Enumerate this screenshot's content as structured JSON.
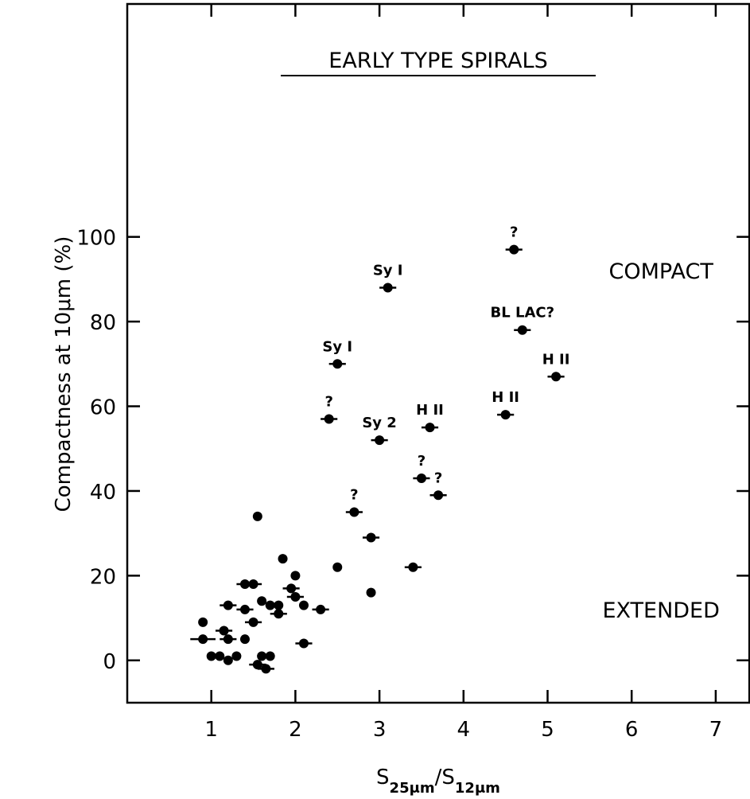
{
  "chart_data": {
    "type": "scatter",
    "title": "EARLY TYPE SPIRALS",
    "x_label_parts": [
      {
        "text": "S"
      },
      {
        "text": "25μm",
        "sub": true
      },
      {
        "text": "/"
      },
      {
        "text": "S"
      },
      {
        "text": "12μm",
        "sub": true
      }
    ],
    "y_label": "Compactness at 10μm (%)",
    "xlim": [
      0,
      7.4
    ],
    "ylim": [
      -10,
      155
    ],
    "xticks": [
      1,
      2,
      3,
      4,
      5,
      6,
      7
    ],
    "yticks": [
      0,
      20,
      40,
      60,
      80,
      100
    ],
    "color": "#000000",
    "annotations": [
      {
        "text": "COMPACT",
        "x": 6.35,
        "y": 92
      },
      {
        "text": "EXTENDED",
        "x": 6.35,
        "y": 12
      }
    ],
    "points": [
      {
        "x": 4.6,
        "y": 97,
        "xerr": 0.1,
        "label": "?"
      },
      {
        "x": 3.1,
        "y": 88,
        "xerr": 0.1,
        "label": "Sy I"
      },
      {
        "x": 4.7,
        "y": 78,
        "xerr": 0.1,
        "label": "BL LAC?"
      },
      {
        "x": 5.1,
        "y": 67,
        "xerr": 0.1,
        "label": "H II"
      },
      {
        "x": 2.5,
        "y": 70,
        "xerr": 0.1,
        "label": "Sy I"
      },
      {
        "x": 2.4,
        "y": 57,
        "xerr": 0.1,
        "label": "?"
      },
      {
        "x": 3.0,
        "y": 52,
        "xerr": 0.1,
        "label": "Sy 2"
      },
      {
        "x": 3.6,
        "y": 55,
        "xerr": 0.1,
        "label": "H II"
      },
      {
        "x": 4.5,
        "y": 58,
        "xerr": 0.1,
        "label": "H II"
      },
      {
        "x": 3.5,
        "y": 43,
        "xerr": 0.1,
        "label": "?"
      },
      {
        "x": 3.7,
        "y": 39,
        "xerr": 0.1,
        "label": "?"
      },
      {
        "x": 2.7,
        "y": 35,
        "xerr": 0.1,
        "label": "?"
      },
      {
        "x": 2.9,
        "y": 29,
        "xerr": 0.1
      },
      {
        "x": 3.4,
        "y": 22,
        "xerr": 0.1
      },
      {
        "x": 2.5,
        "y": 22
      },
      {
        "x": 2.9,
        "y": 16
      },
      {
        "x": 1.55,
        "y": 34
      },
      {
        "x": 1.85,
        "y": 24
      },
      {
        "x": 2.0,
        "y": 20
      },
      {
        "x": 1.95,
        "y": 17,
        "xerr": 0.1
      },
      {
        "x": 2.0,
        "y": 15,
        "xerr": 0.1
      },
      {
        "x": 2.1,
        "y": 13
      },
      {
        "x": 2.3,
        "y": 12,
        "xerr": 0.1
      },
      {
        "x": 2.1,
        "y": 4,
        "xerr": 0.1
      },
      {
        "x": 1.4,
        "y": 18,
        "xerr": 0.1
      },
      {
        "x": 1.5,
        "y": 18,
        "xerr": 0.1
      },
      {
        "x": 1.4,
        "y": 12,
        "xerr": 0.1
      },
      {
        "x": 1.5,
        "y": 9,
        "xerr": 0.1
      },
      {
        "x": 1.6,
        "y": 14
      },
      {
        "x": 1.7,
        "y": 13
      },
      {
        "x": 1.8,
        "y": 13
      },
      {
        "x": 1.8,
        "y": 11,
        "xerr": 0.1
      },
      {
        "x": 1.2,
        "y": 13,
        "xerr": 0.1
      },
      {
        "x": 1.15,
        "y": 7,
        "xerr": 0.1
      },
      {
        "x": 1.2,
        "y": 5,
        "xerr": 0.1
      },
      {
        "x": 0.9,
        "y": 9
      },
      {
        "x": 0.9,
        "y": 5,
        "xerr": 0.15
      },
      {
        "x": 1.4,
        "y": 5
      },
      {
        "x": 1.0,
        "y": 1
      },
      {
        "x": 1.1,
        "y": 1
      },
      {
        "x": 1.2,
        "y": 0
      },
      {
        "x": 1.3,
        "y": 1
      },
      {
        "x": 1.55,
        "y": -1,
        "xerr": 0.1
      },
      {
        "x": 1.6,
        "y": 1
      },
      {
        "x": 1.7,
        "y": 1
      },
      {
        "x": 1.65,
        "y": -2,
        "xerr": 0.1
      }
    ]
  }
}
